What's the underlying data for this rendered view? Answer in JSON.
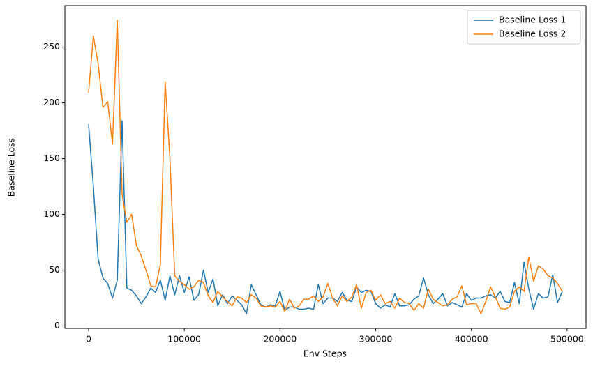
{
  "chart_data": {
    "type": "line",
    "xlabel": "Env Steps",
    "ylabel": "Baseline Loss",
    "x": [
      0,
      5000,
      10000,
      15000,
      20000,
      25000,
      30000,
      35000,
      40000,
      45000,
      50000,
      55000,
      60000,
      65000,
      70000,
      75000,
      80000,
      85000,
      90000,
      95000,
      100000,
      105000,
      110000,
      115000,
      120000,
      125000,
      130000,
      135000,
      140000,
      145000,
      150000,
      155000,
      160000,
      165000,
      170000,
      175000,
      180000,
      185000,
      190000,
      195000,
      200000,
      205000,
      210000,
      215000,
      220000,
      225000,
      230000,
      235000,
      240000,
      245000,
      250000,
      255000,
      260000,
      265000,
      270000,
      275000,
      280000,
      285000,
      290000,
      295000,
      300000,
      305000,
      310000,
      315000,
      320000,
      325000,
      330000,
      335000,
      340000,
      345000,
      350000,
      355000,
      360000,
      365000,
      370000,
      375000,
      380000,
      385000,
      390000,
      395000,
      400000,
      405000,
      410000,
      415000,
      420000,
      425000,
      430000,
      435000,
      440000,
      445000,
      450000,
      455000,
      460000,
      465000,
      470000,
      475000,
      480000,
      485000,
      490000,
      495000
    ],
    "series": [
      {
        "name": "Baseline Loss 1",
        "color": "#1f77b4",
        "values": [
          181,
          125,
          60,
          43,
          38,
          25,
          41,
          184,
          34,
          32,
          27,
          20,
          26,
          34,
          30,
          41,
          23,
          45,
          28,
          45,
          30,
          44,
          23,
          28,
          50,
          30,
          42,
          18,
          28,
          20,
          27,
          23,
          19,
          11,
          37,
          28,
          19,
          17,
          19,
          18,
          31,
          14,
          17,
          17,
          15,
          15,
          16,
          15,
          37,
          20,
          25,
          25,
          22,
          30,
          23,
          22,
          35,
          30,
          32,
          31,
          20,
          16,
          19,
          17,
          29,
          18,
          18,
          19,
          24,
          27,
          43,
          28,
          20,
          24,
          29,
          18,
          21,
          19,
          17,
          29,
          23,
          25,
          25,
          27,
          28,
          25,
          31,
          22,
          21,
          39,
          20,
          57,
          33,
          15,
          29,
          25,
          26,
          46,
          21,
          31
        ]
      },
      {
        "name": "Baseline Loss 2",
        "color": "#ff7f0e",
        "values": [
          209,
          260,
          235,
          196,
          201,
          163,
          274,
          118,
          93,
          100,
          72,
          63,
          50,
          36,
          35,
          55,
          219,
          150,
          45,
          40,
          37,
          33,
          35,
          41,
          39,
          27,
          21,
          31,
          26,
          22,
          18,
          26,
          25,
          21,
          28,
          25,
          18,
          17,
          18,
          17,
          22,
          13,
          24,
          16,
          18,
          24,
          24,
          27,
          22,
          26,
          38,
          25,
          18,
          27,
          22,
          26,
          37,
          16,
          30,
          32,
          23,
          28,
          20,
          22,
          16,
          25,
          21,
          20,
          14,
          20,
          16,
          33,
          24,
          21,
          18,
          19,
          24,
          26,
          36,
          19,
          20,
          20,
          11,
          22,
          35,
          26,
          16,
          15,
          17,
          31,
          35,
          31,
          62,
          40,
          54,
          51,
          45,
          43,
          38,
          31
        ]
      }
    ],
    "xlim": [
      -24750,
      519750
    ],
    "ylim": [
      -2.15,
      287.2
    ],
    "xticks": [
      0,
      100000,
      200000,
      300000,
      400000,
      500000
    ],
    "yticks": [
      0,
      50,
      100,
      150,
      200,
      250
    ],
    "legend": "upper right",
    "grid": false
  }
}
